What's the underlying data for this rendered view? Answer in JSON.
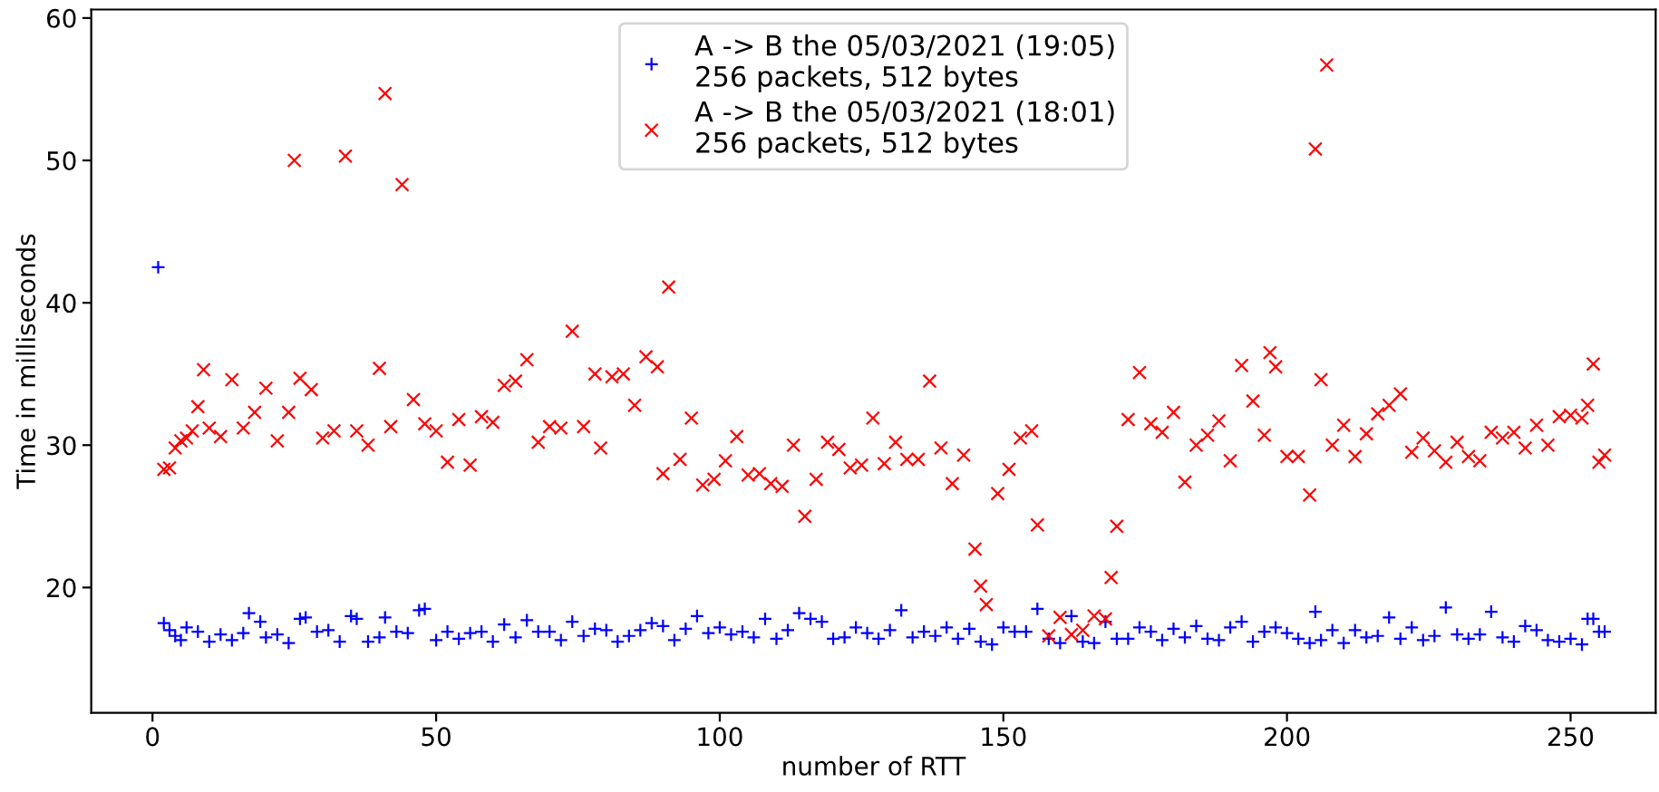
{
  "chart_data": {
    "type": "scatter",
    "xlabel": "number of RTT",
    "ylabel": "Time in milliseconds",
    "xlim": [
      -10.8,
      265
    ],
    "ylim": [
      11.2,
      60.6
    ],
    "xticks": [
      0,
      50,
      100,
      150,
      200,
      250
    ],
    "yticks": [
      20,
      30,
      40,
      50,
      60
    ],
    "grid": false,
    "legend": "top",
    "series": [
      {
        "name": "A -> B the 05/03/2021 (19:05)\n256 packets, 512 bytes",
        "color": "#0000ff",
        "marker": "plus",
        "x": [
          1,
          2,
          3,
          4,
          5,
          6,
          8,
          10,
          12,
          14,
          16,
          17,
          19,
          20,
          22,
          24,
          26,
          27,
          29,
          31,
          33,
          35,
          36,
          38,
          40,
          41,
          43,
          45,
          47,
          48,
          50,
          52,
          54,
          56,
          58,
          60,
          62,
          64,
          66,
          68,
          70,
          72,
          74,
          76,
          78,
          80,
          82,
          84,
          86,
          88,
          90,
          92,
          94,
          96,
          98,
          100,
          102,
          104,
          106,
          108,
          110,
          112,
          114,
          116,
          118,
          120,
          122,
          124,
          126,
          128,
          130,
          132,
          134,
          136,
          138,
          140,
          142,
          144,
          146,
          148,
          150,
          152,
          154,
          156,
          158,
          160,
          162,
          164,
          166,
          168,
          170,
          172,
          174,
          176,
          178,
          180,
          182,
          184,
          186,
          188,
          190,
          192,
          194,
          196,
          198,
          200,
          202,
          204,
          205,
          206,
          208,
          210,
          212,
          214,
          216,
          218,
          220,
          222,
          224,
          226,
          228,
          230,
          232,
          234,
          236,
          238,
          240,
          242,
          244,
          246,
          248,
          250,
          252,
          253,
          254,
          255,
          256
        ],
        "values": [
          42.5,
          17.5,
          17,
          16.6,
          16.3,
          17.2,
          16.9,
          16.2,
          16.7,
          16.3,
          16.8,
          18.2,
          17.6,
          16.5,
          16.7,
          16.1,
          17.8,
          17.9,
          16.9,
          17,
          16.2,
          18,
          17.8,
          16.2,
          16.5,
          17.9,
          16.9,
          16.8,
          18.4,
          18.5,
          16.3,
          16.9,
          16.4,
          16.8,
          16.9,
          16.2,
          17.4,
          16.5,
          17.7,
          16.9,
          16.9,
          16.3,
          17.6,
          16.6,
          17.1,
          17,
          16.2,
          16.6,
          17,
          17.5,
          17.3,
          16.3,
          17.1,
          18,
          16.8,
          17.2,
          16.7,
          16.9,
          16.5,
          17.8,
          16.4,
          17,
          18.2,
          17.8,
          17.6,
          16.4,
          16.5,
          17.2,
          16.8,
          16.4,
          17,
          18.4,
          16.5,
          16.9,
          16.6,
          17.2,
          16.4,
          17.1,
          16.2,
          16,
          17.2,
          16.9,
          16.9,
          18.5,
          16.4,
          16.1,
          18,
          16.2,
          16.1,
          17.6,
          16.4,
          16.4,
          17.2,
          16.9,
          16.3,
          17.1,
          16.5,
          17.3,
          16.4,
          16.3,
          17.2,
          17.6,
          16.2,
          16.9,
          17.2,
          16.8,
          16.4,
          16.1,
          18.3,
          16.3,
          17,
          16.1,
          17,
          16.5,
          16.6,
          17.9,
          16.4,
          17.2,
          16.3,
          16.6,
          18.6,
          16.7,
          16.4,
          16.7,
          18.3,
          16.5,
          16.2,
          17.3,
          17,
          16.3,
          16.2,
          16.4,
          16,
          17.8,
          17.8,
          16.9,
          16.9
        ]
      },
      {
        "name": "A -> B the 05/03/2021 (18:01)\n256 packets, 512 bytes",
        "color": "#ff0000",
        "marker": "cross",
        "x": [
          2,
          3,
          4,
          5,
          6,
          7,
          8,
          9,
          10,
          12,
          14,
          16,
          18,
          20,
          22,
          24,
          25,
          26,
          28,
          30,
          32,
          34,
          36,
          38,
          40,
          41,
          42,
          44,
          46,
          48,
          50,
          52,
          54,
          56,
          58,
          60,
          62,
          64,
          66,
          68,
          70,
          72,
          74,
          76,
          78,
          79,
          81,
          83,
          85,
          87,
          89,
          90,
          91,
          93,
          95,
          97,
          99,
          101,
          103,
          105,
          107,
          109,
          111,
          113,
          115,
          117,
          119,
          121,
          123,
          125,
          127,
          129,
          131,
          133,
          135,
          137,
          139,
          141,
          143,
          145,
          146,
          147,
          149,
          151,
          153,
          155,
          156,
          158,
          160,
          162,
          164,
          166,
          168,
          169,
          170,
          172,
          174,
          176,
          178,
          180,
          182,
          184,
          186,
          188,
          190,
          192,
          194,
          196,
          197,
          198,
          200,
          202,
          204,
          205,
          206,
          207,
          208,
          210,
          212,
          214,
          216,
          218,
          220,
          222,
          224,
          226,
          228,
          230,
          232,
          234,
          236,
          238,
          240,
          242,
          244,
          246,
          248,
          250,
          252,
          253,
          254,
          255,
          256
        ],
        "values": [
          28.3,
          28.4,
          29.8,
          30.3,
          30.5,
          31,
          32.7,
          35.3,
          31.2,
          30.6,
          34.6,
          31.2,
          32.3,
          34,
          30.3,
          32.3,
          50,
          34.7,
          33.9,
          30.5,
          31,
          50.3,
          31,
          30,
          35.4,
          54.7,
          31.3,
          48.3,
          33.2,
          31.5,
          31,
          28.8,
          31.8,
          28.6,
          32,
          31.6,
          34.2,
          34.5,
          36,
          30.2,
          31.3,
          31.2,
          38,
          31.3,
          35,
          29.8,
          34.8,
          35,
          32.8,
          36.2,
          35.5,
          28,
          41.1,
          29,
          31.9,
          27.2,
          27.6,
          28.9,
          30.6,
          27.9,
          28,
          27.3,
          27.1,
          30,
          25,
          27.6,
          30.2,
          29.7,
          28.4,
          28.6,
          31.9,
          28.7,
          30.2,
          29,
          29,
          34.5,
          29.8,
          27.3,
          29.3,
          22.7,
          20.1,
          18.8,
          26.6,
          28.3,
          30.5,
          31,
          24.4,
          16.6,
          17.9,
          16.7,
          17,
          18,
          17.8,
          20.7,
          24.3,
          31.8,
          35.1,
          31.5,
          30.9,
          32.3,
          27.4,
          30,
          30.7,
          31.7,
          28.9,
          35.6,
          33.1,
          30.7,
          36.5,
          35.5,
          29.2,
          29.2,
          26.5,
          50.8,
          34.6,
          56.7,
          30,
          31.4,
          29.2,
          30.8,
          32.2,
          32.8,
          33.6,
          29.5,
          30.5,
          29.6,
          28.8,
          30.2,
          29.2,
          28.9,
          30.9,
          30.5,
          30.9,
          29.8,
          31.4,
          30,
          32,
          32.1,
          31.9,
          32.8,
          35.7,
          28.8,
          29.3
        ]
      }
    ]
  }
}
